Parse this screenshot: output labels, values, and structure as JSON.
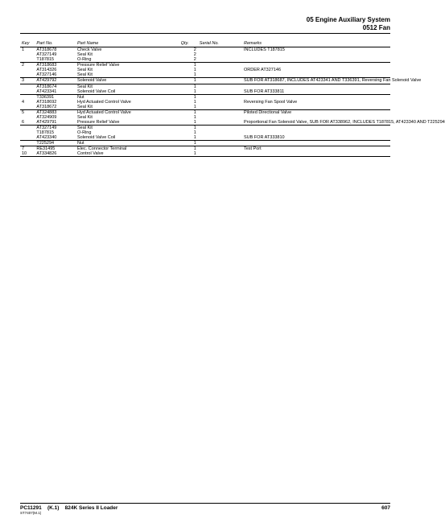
{
  "header": {
    "section_line1": "05 Engine Auxiliary System",
    "section_line2": "0512 Fan"
  },
  "columns": {
    "key": "Key",
    "partno": "Part No.",
    "name": "Part Name",
    "qty": "Qty.",
    "serial": "Serial No.",
    "remarks": "Remarks"
  },
  "rows": [
    {
      "key": "1",
      "partno": "AT318678",
      "name": "Check Valve",
      "qty": "2",
      "serial": "",
      "remarks": "INCLUDES T187815",
      "end": false
    },
    {
      "key": "",
      "partno": "AT327149",
      "name": "Seal Kit",
      "qty": "2",
      "serial": "",
      "remarks": "",
      "end": false
    },
    {
      "key": "",
      "partno": "T187815",
      "name": "O-Ring",
      "qty": "2",
      "serial": "",
      "remarks": "",
      "end": true
    },
    {
      "key": "2",
      "partno": "AT318683",
      "name": "Pressure Relief Valve",
      "qty": "1",
      "serial": "",
      "remarks": "",
      "end": false
    },
    {
      "key": "",
      "partno": "AT314326",
      "name": "Seal Kit",
      "qty": "1",
      "serial": "",
      "remarks": "ORDER AT327146",
      "end": false
    },
    {
      "key": "",
      "partno": "AT327146",
      "name": "Seal Kit",
      "qty": "1",
      "serial": "",
      "remarks": "",
      "end": true
    },
    {
      "key": "3",
      "partno": "AT429792",
      "name": "Solenoid Valve",
      "qty": "1",
      "serial": "",
      "remarks": "SUB FOR AT318687, INCLUDES AT423341 AND T336391, Reversing Fan Solenoid Valve",
      "end": true
    },
    {
      "key": "",
      "partno": "AT318674",
      "name": "Seal Kit",
      "qty": "1",
      "serial": "",
      "remarks": "",
      "end": false
    },
    {
      "key": "",
      "partno": "AT423341",
      "name": "Solenoid Valve Coil",
      "qty": "1",
      "serial": "",
      "remarks": "SUB FOR AT333811",
      "end": true
    },
    {
      "key": "",
      "partno": "T336391",
      "name": "Nut",
      "qty": "1",
      "serial": "",
      "remarks": "",
      "end": false
    },
    {
      "key": "4",
      "partno": "AT318692",
      "name": "Hyd Actuated Control Valve",
      "qty": "1",
      "serial": "",
      "remarks": "Reversing Fan Spool Valve",
      "end": false
    },
    {
      "key": "",
      "partno": "AT318672",
      "name": "Seal Kit",
      "qty": "1",
      "serial": "",
      "remarks": "",
      "end": true
    },
    {
      "key": "5",
      "partno": "AT324883",
      "name": "Hyd Actuated Control Valve",
      "qty": "1",
      "serial": "",
      "remarks": "Piloted Directional Valve",
      "end": false
    },
    {
      "key": "",
      "partno": "AT324909",
      "name": "Seal Kit",
      "qty": "1",
      "serial": "",
      "remarks": "",
      "end": false
    },
    {
      "key": "6",
      "partno": "AT429791",
      "name": "Pressure Relief Valve",
      "qty": "1",
      "serial": "",
      "remarks": "Proportional Fan Solenoid Valve, SUB FOR AT338962, INCLUDES T187815, AT423340 AND T225294",
      "end": true
    },
    {
      "key": "",
      "partno": "AT327149",
      "name": "Seal Kit",
      "qty": "1",
      "serial": "",
      "remarks": "",
      "end": false
    },
    {
      "key": "",
      "partno": "T187815",
      "name": "O-Ring",
      "qty": "1",
      "serial": "",
      "remarks": "",
      "end": false
    },
    {
      "key": "",
      "partno": "AT423340",
      "name": "Solenoid Valve Coil",
      "qty": "1",
      "serial": "",
      "remarks": "SUB FOR AT333810",
      "end": true
    },
    {
      "key": "",
      "partno": "T225294",
      "name": "Nut",
      "qty": "1",
      "serial": "",
      "remarks": "",
      "end": true
    },
    {
      "key": "7",
      "partno": "RE31495",
      "name": "Elec. Connector Terminal",
      "qty": "1",
      "serial": "",
      "remarks": "Test Port",
      "end": false
    },
    {
      "key": "10",
      "partno": "AT334826",
      "name": "Control Valve",
      "qty": "1",
      "serial": "",
      "remarks": "",
      "end": true
    }
  ],
  "footer": {
    "left_doc": "PC11291",
    "left_rev": "(K.1)",
    "left_model": "824K Series II Loader",
    "left_sub": "ST7407(M.1)",
    "page": "607"
  }
}
